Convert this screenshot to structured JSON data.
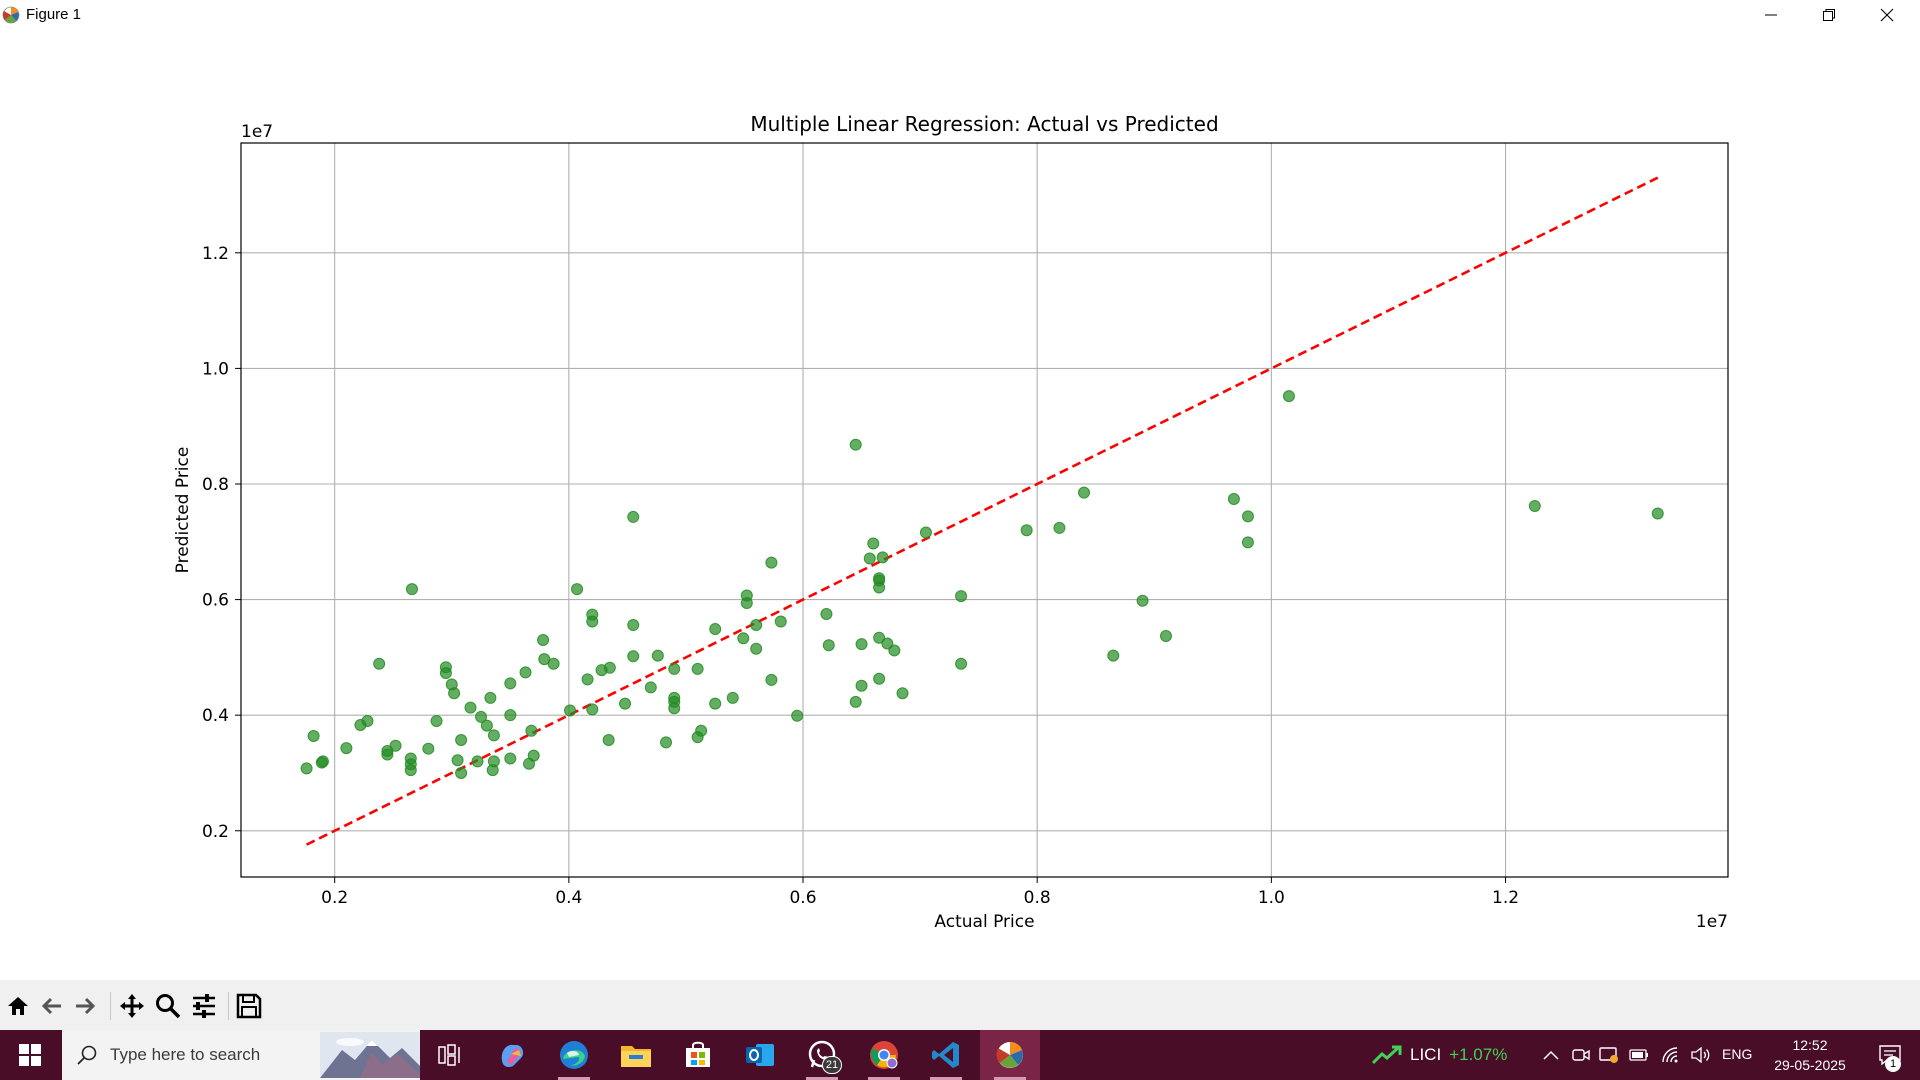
{
  "window": {
    "title": "Figure 1",
    "controls": [
      "minimize",
      "maximize",
      "close"
    ]
  },
  "colors": {
    "taskbar": "#4a0d27",
    "scatter": "#228b22",
    "fit_line": "#ff0000",
    "grid": "#b0b0b0"
  },
  "chart_data": {
    "type": "scatter",
    "title": "Multiple Linear Regression: Actual vs Predicted",
    "xlabel": "Actual Price",
    "ylabel": "Predicted Price",
    "x_offset_label": "1e7",
    "y_offset_label": "1e7",
    "xlim": [
      0.12,
      1.39
    ],
    "ylim": [
      0.12,
      1.39
    ],
    "xticks": [
      0.2,
      0.4,
      0.6,
      0.8,
      1.0,
      1.2
    ],
    "yticks": [
      0.2,
      0.4,
      0.6,
      0.8,
      1.0,
      1.2
    ],
    "xtick_labels": [
      "0.2",
      "0.4",
      "0.6",
      "0.8",
      "1.0",
      "1.2"
    ],
    "ytick_labels": [
      "0.2",
      "0.4",
      "0.6",
      "0.8",
      "1.0",
      "1.2"
    ],
    "grid": true,
    "scale_note": "values are in units of 1e7",
    "series": [
      {
        "marker": "circle",
        "color": "#228b22",
        "alpha": 0.7,
        "points": [
          [
            0.176,
            0.308
          ],
          [
            0.182,
            0.364
          ],
          [
            0.189,
            0.318
          ],
          [
            0.19,
            0.32
          ],
          [
            0.21,
            0.343
          ],
          [
            0.222,
            0.383
          ],
          [
            0.228,
            0.39
          ],
          [
            0.238,
            0.489
          ],
          [
            0.245,
            0.332
          ],
          [
            0.245,
            0.338
          ],
          [
            0.252,
            0.347
          ],
          [
            0.265,
            0.305
          ],
          [
            0.265,
            0.315
          ],
          [
            0.265,
            0.325
          ],
          [
            0.266,
            0.618
          ],
          [
            0.28,
            0.342
          ],
          [
            0.287,
            0.39
          ],
          [
            0.295,
            0.483
          ],
          [
            0.295,
            0.473
          ],
          [
            0.3,
            0.453
          ],
          [
            0.302,
            0.438
          ],
          [
            0.305,
            0.322
          ],
          [
            0.308,
            0.3
          ],
          [
            0.308,
            0.357
          ],
          [
            0.316,
            0.413
          ],
          [
            0.322,
            0.32
          ],
          [
            0.325,
            0.397
          ],
          [
            0.33,
            0.382
          ],
          [
            0.333,
            0.43
          ],
          [
            0.335,
            0.305
          ],
          [
            0.336,
            0.365
          ],
          [
            0.336,
            0.32
          ],
          [
            0.35,
            0.455
          ],
          [
            0.35,
            0.4
          ],
          [
            0.35,
            0.325
          ],
          [
            0.363,
            0.474
          ],
          [
            0.366,
            0.316
          ],
          [
            0.368,
            0.373
          ],
          [
            0.37,
            0.33
          ],
          [
            0.378,
            0.53
          ],
          [
            0.379,
            0.497
          ],
          [
            0.387,
            0.489
          ],
          [
            0.401,
            0.408
          ],
          [
            0.407,
            0.618
          ],
          [
            0.416,
            0.462
          ],
          [
            0.42,
            0.574
          ],
          [
            0.42,
            0.562
          ],
          [
            0.42,
            0.41
          ],
          [
            0.428,
            0.478
          ],
          [
            0.434,
            0.357
          ],
          [
            0.435,
            0.482
          ],
          [
            0.448,
            0.42
          ],
          [
            0.455,
            0.743
          ],
          [
            0.455,
            0.556
          ],
          [
            0.455,
            0.502
          ],
          [
            0.47,
            0.448
          ],
          [
            0.476,
            0.503
          ],
          [
            0.483,
            0.353
          ],
          [
            0.49,
            0.48
          ],
          [
            0.49,
            0.43
          ],
          [
            0.49,
            0.423
          ],
          [
            0.49,
            0.412
          ],
          [
            0.51,
            0.362
          ],
          [
            0.51,
            0.48
          ],
          [
            0.513,
            0.373
          ],
          [
            0.525,
            0.549
          ],
          [
            0.525,
            0.42
          ],
          [
            0.54,
            0.43
          ],
          [
            0.549,
            0.533
          ],
          [
            0.552,
            0.607
          ],
          [
            0.552,
            0.594
          ],
          [
            0.56,
            0.556
          ],
          [
            0.56,
            0.515
          ],
          [
            0.573,
            0.664
          ],
          [
            0.573,
            0.461
          ],
          [
            0.581,
            0.562
          ],
          [
            0.595,
            0.399
          ],
          [
            0.62,
            0.575
          ],
          [
            0.622,
            0.521
          ],
          [
            0.645,
            0.868
          ],
          [
            0.645,
            0.423
          ],
          [
            0.65,
            0.523
          ],
          [
            0.65,
            0.451
          ],
          [
            0.657,
            0.671
          ],
          [
            0.66,
            0.697
          ],
          [
            0.665,
            0.637
          ],
          [
            0.665,
            0.633
          ],
          [
            0.665,
            0.621
          ],
          [
            0.665,
            0.534
          ],
          [
            0.665,
            0.463
          ],
          [
            0.668,
            0.673
          ],
          [
            0.672,
            0.524
          ],
          [
            0.678,
            0.512
          ],
          [
            0.685,
            0.438
          ],
          [
            0.705,
            0.716
          ],
          [
            0.735,
            0.606
          ],
          [
            0.735,
            0.489
          ],
          [
            0.791,
            0.72
          ],
          [
            0.819,
            0.724
          ],
          [
            0.84,
            0.785
          ],
          [
            0.865,
            0.503
          ],
          [
            0.89,
            0.598
          ],
          [
            0.91,
            0.537
          ],
          [
            0.968,
            0.774
          ],
          [
            0.98,
            0.744
          ],
          [
            0.98,
            0.699
          ],
          [
            1.015,
            0.952
          ],
          [
            1.225,
            0.762
          ],
          [
            1.33,
            0.749
          ]
        ]
      },
      {
        "type": "line",
        "style": "dashed",
        "color": "#ff0000",
        "x": [
          0.176,
          1.33
        ],
        "y": [
          0.176,
          1.33
        ]
      }
    ]
  },
  "toolbar": {
    "buttons": [
      "home-icon",
      "back-arrow-icon",
      "forward-arrow-icon",
      "pan-icon",
      "zoom-icon",
      "configure-subplots-icon",
      "save-icon"
    ]
  },
  "taskbar": {
    "search_placeholder": "Type here to search",
    "apps": [
      "task-view",
      "copilot",
      "edge",
      "file-explorer",
      "microsoft-store",
      "outlook",
      "whatsapp",
      "chrome",
      "vscode",
      "matplotlib"
    ],
    "whatsapp_badge": "21",
    "stock_name": "LICI",
    "stock_change": "+1.07%",
    "language": "ENG",
    "time": "12:52",
    "date": "29-05-2025",
    "notification_count": "1"
  }
}
